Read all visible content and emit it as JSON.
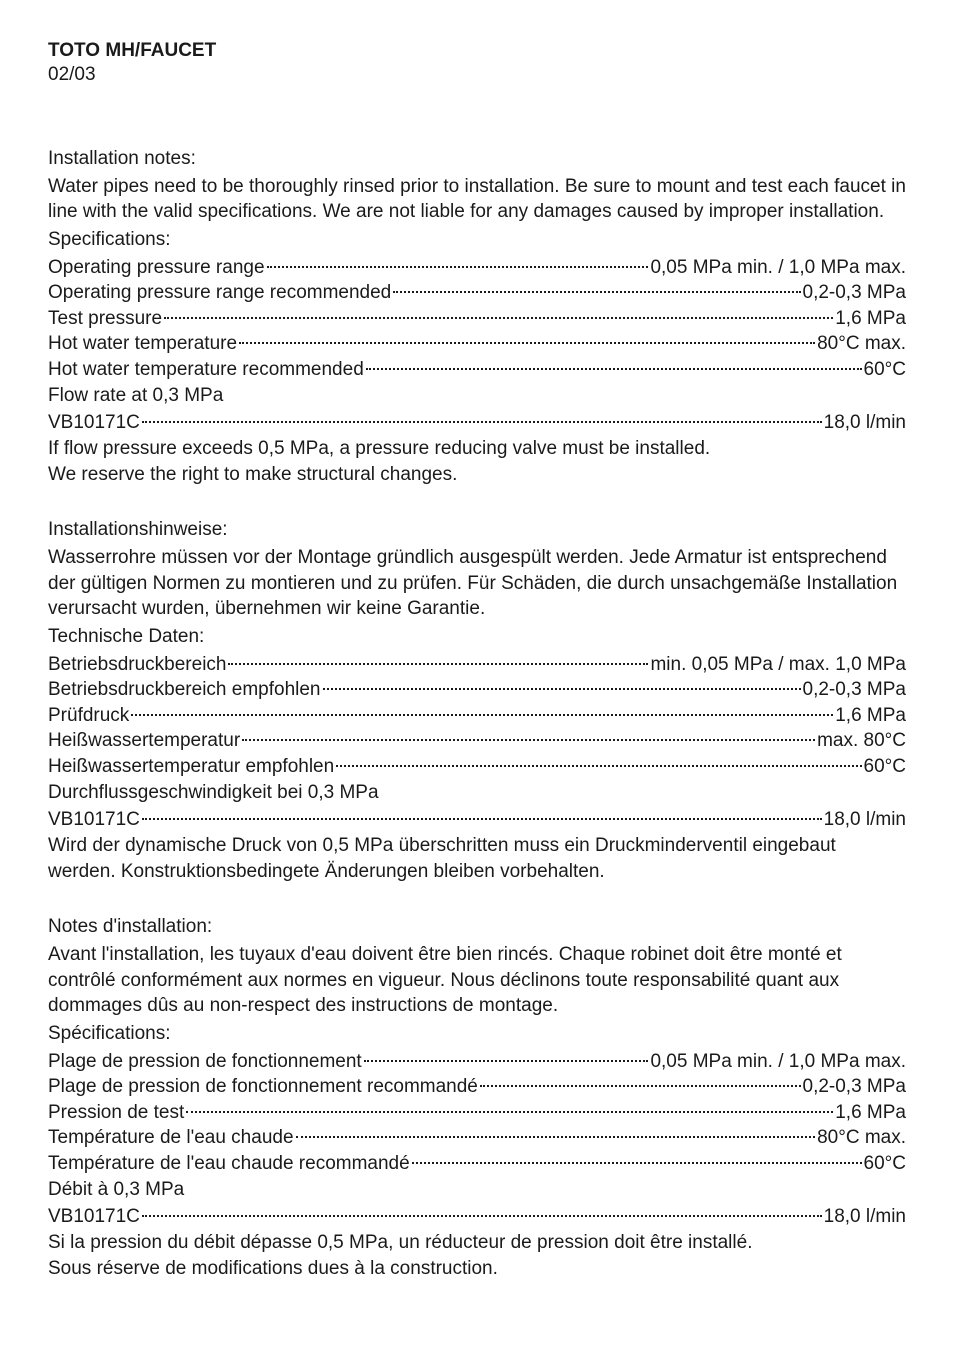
{
  "header": {
    "title": "TOTO MH/FAUCET",
    "page": "02/03"
  },
  "sections": [
    {
      "heading": "Installation notes:",
      "intro": "Water pipes need to be thoroughly rinsed prior to installation. Be sure to mount and test each faucet in line with the valid specifications. We are not liable for any damages caused by improper installation.",
      "subheading": "Specifications:",
      "specs": [
        {
          "label": "Operating pressure range",
          "value": "0,05 MPa min. / 1,0 MPa max."
        },
        {
          "label": "Operating pressure range recommended",
          "value": "0,2-0,3 MPa"
        },
        {
          "label": "Test pressure",
          "value": "1,6 MPa"
        },
        {
          "label": "Hot water temperature",
          "value": "80°C max."
        },
        {
          "label": "Hot water temperature recommended",
          "value": "60°C"
        }
      ],
      "flow_heading": "Flow rate at 0,3 MPa",
      "flow_rows": [
        {
          "label": "VB10171C",
          "value": "18,0 l/min"
        }
      ],
      "footer": [
        "If flow pressure exceeds 0,5 MPa, a pressure reducing valve must be installed.",
        "We reserve the right to make structural changes."
      ]
    },
    {
      "heading": "Installationshinweise:",
      "intro": "Wasserrohre müssen vor der Montage gründlich ausgespült werden. Jede Armatur ist entsprechend der gültigen Normen zu montieren und zu prüfen. Für Schäden, die durch unsachgemäße Installation verursacht wurden, übernehmen wir keine Garantie.",
      "subheading": "Technische Daten:",
      "specs": [
        {
          "label": "Betriebsdruckbereich",
          "value": "min. 0,05 MPa / max. 1,0 MPa"
        },
        {
          "label": "Betriebsdruckbereich empfohlen",
          "value": "0,2-0,3 MPa"
        },
        {
          "label": "Prüfdruck",
          "value": "1,6 MPa"
        },
        {
          "label": "Heißwassertemperatur",
          "value": "max. 80°C"
        },
        {
          "label": "Heißwassertemperatur empfohlen",
          "value": "60°C"
        }
      ],
      "flow_heading": "Durchflussgeschwindigkeit bei 0,3 MPa",
      "flow_rows": [
        {
          "label": "VB10171C",
          "value": "18,0 l/min"
        }
      ],
      "footer": [
        "Wird der dynamische Druck von 0,5 MPa überschritten muss ein Druckminderventil eingebaut werden. Konstruktionsbedingete Änderungen bleiben vorbehalten."
      ]
    },
    {
      "heading": "Notes d'installation:",
      "intro": "Avant l'installation, les tuyaux d'eau doivent être bien rincés. Chaque robinet doit être monté et contrôlé conformément aux normes en vigueur. Nous déclinons toute responsabilité quant aux dommages dûs au non-respect des instructions de montage.",
      "subheading": "Spécifications:",
      "specs": [
        {
          "label": "Plage de pression de fonctionnement",
          "value": "0,05 MPa min. / 1,0 MPa max."
        },
        {
          "label": "Plage de pression de fonctionnement recommandé",
          "value": "0,2-0,3 MPa"
        },
        {
          "label": "Pression de test",
          "value": "1,6 MPa"
        },
        {
          "label": "Température de l'eau chaude",
          "value": "80°C max."
        },
        {
          "label": "Température de l'eau chaude recommandé",
          "value": "60°C"
        }
      ],
      "flow_heading": "Débit à 0,3 MPa",
      "flow_rows": [
        {
          "label": "VB10171C",
          "value": "18,0 l/min"
        }
      ],
      "footer": [
        "Si la pression du débit dépasse 0,5 MPa, un réducteur de pression doit être installé.",
        "Sous réserve de modifications dues à la construction."
      ]
    }
  ]
}
